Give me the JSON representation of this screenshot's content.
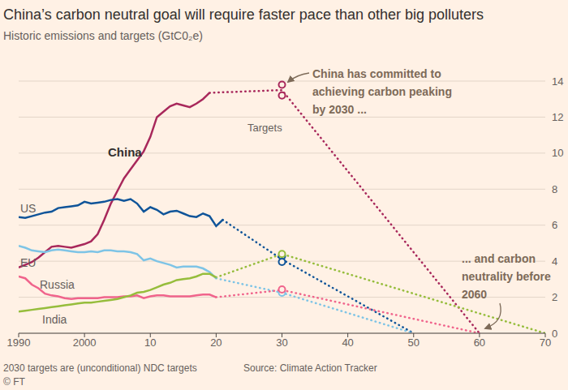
{
  "chart_data": {
    "type": "line",
    "title": "China’s carbon neutral goal will require faster pace than other big polluters",
    "subtitle": "Historic emissions and targets (GtC0₂e)",
    "note": "2030 targets are (unconditional) NDC targets",
    "source": "Source: Climate Action Tracker",
    "credit": "© FT",
    "x": [
      1990,
      1991,
      1992,
      1993,
      1994,
      1995,
      1996,
      1997,
      1998,
      1999,
      2000,
      2001,
      2002,
      2003,
      2004,
      2005,
      2006,
      2007,
      2008,
      2009,
      2010,
      2011,
      2012,
      2013,
      2014,
      2015,
      2016,
      2017,
      2018,
      2019,
      2020,
      2021
    ],
    "xlim": [
      1990,
      2070
    ],
    "xticks": [
      1990,
      2000,
      {
        "value": 2010,
        "label": "10"
      },
      {
        "value": 2020,
        "label": "20"
      },
      {
        "value": 2030,
        "label": "30"
      },
      {
        "value": 2040,
        "label": "40"
      },
      {
        "value": 2050,
        "label": "50"
      },
      {
        "value": 2060,
        "label": "60"
      },
      {
        "value": 2070,
        "label": "70"
      }
    ],
    "ylim": [
      0,
      14
    ],
    "yticks": [
      0,
      2,
      4,
      6,
      8,
      10,
      12,
      14
    ],
    "grid": true,
    "targets_label": "Targets",
    "series": [
      {
        "name": "China",
        "color": "#a8285b",
        "line_style": "solid",
        "values": [
          3.65,
          3.8,
          3.95,
          4.2,
          4.5,
          4.8,
          4.85,
          4.8,
          4.75,
          4.85,
          4.95,
          5.1,
          5.5,
          6.3,
          7.2,
          7.9,
          8.6,
          9.1,
          9.6,
          10.1,
          10.9,
          12.0,
          12.3,
          12.6,
          12.75,
          12.65,
          12.55,
          12.75,
          13.0,
          13.35,
          null,
          null
        ],
        "projection": {
          "x": [
            2019,
            2030,
            2060
          ],
          "values": [
            13.35,
            13.5,
            0
          ],
          "line_style": "dotted"
        },
        "targets": {
          "x": [
            2030,
            2030
          ],
          "values": [
            13.8,
            13.2
          ],
          "marker": "circle"
        }
      },
      {
        "name": "US",
        "color": "#0f5499",
        "line_style": "solid",
        "values": [
          6.45,
          6.4,
          6.5,
          6.6,
          6.7,
          6.75,
          6.95,
          7.0,
          7.05,
          7.1,
          7.3,
          7.2,
          7.25,
          7.3,
          7.4,
          7.45,
          7.35,
          7.45,
          7.2,
          6.75,
          7.0,
          6.85,
          6.6,
          6.75,
          6.8,
          6.65,
          6.5,
          6.45,
          6.65,
          6.5,
          5.95,
          6.3
        ],
        "projection": {
          "x": [
            2021,
            2030,
            2050
          ],
          "values": [
            6.3,
            4.1,
            0
          ],
          "line_style": "dotted"
        },
        "targets": {
          "x": [
            2030,
            2030
          ],
          "values": [
            4.28,
            3.96
          ],
          "marker": "circle"
        }
      },
      {
        "name": "EU",
        "color": "#7ec4e6",
        "line_style": "solid",
        "values": [
          4.85,
          4.75,
          4.6,
          4.55,
          4.5,
          4.6,
          4.65,
          4.6,
          4.55,
          4.5,
          4.5,
          4.55,
          4.5,
          4.6,
          4.6,
          4.55,
          4.55,
          4.5,
          4.4,
          4.05,
          4.15,
          4.0,
          3.9,
          3.8,
          3.65,
          3.7,
          3.7,
          3.7,
          3.6,
          3.4,
          3.05,
          null
        ],
        "projection": {
          "x": [
            2020,
            2030,
            2050
          ],
          "values": [
            3.05,
            2.25,
            0
          ],
          "line_style": "dotted"
        },
        "targets": {
          "x": [
            2030
          ],
          "values": [
            2.25
          ],
          "marker": "circle"
        }
      },
      {
        "name": "Russia",
        "color": "#f0648c",
        "line_style": "solid",
        "values": [
          3.15,
          3.05,
          2.7,
          2.5,
          2.2,
          2.1,
          2.05,
          1.95,
          1.9,
          1.95,
          1.95,
          1.95,
          1.95,
          2.0,
          2.0,
          2.0,
          2.05,
          2.05,
          2.1,
          1.95,
          2.05,
          2.1,
          2.1,
          2.05,
          2.05,
          2.05,
          2.05,
          2.1,
          2.15,
          2.15,
          2.0,
          null
        ],
        "projection": {
          "x": [
            2020,
            2030,
            2060
          ],
          "values": [
            2.0,
            2.4,
            0
          ],
          "line_style": "dotted"
        },
        "targets": {
          "x": [
            2030
          ],
          "values": [
            2.43
          ],
          "marker": "circle"
        }
      },
      {
        "name": "India",
        "color": "#96bd3c",
        "line_style": "solid",
        "values": [
          1.2,
          1.25,
          1.3,
          1.35,
          1.4,
          1.45,
          1.5,
          1.55,
          1.6,
          1.65,
          1.7,
          1.7,
          1.75,
          1.8,
          1.85,
          1.9,
          2.0,
          2.1,
          2.25,
          2.3,
          2.4,
          2.55,
          2.7,
          2.8,
          2.95,
          3.0,
          3.05,
          3.15,
          3.3,
          3.3,
          3.1,
          null
        ],
        "projection": {
          "x": [
            2020,
            2030,
            2070
          ],
          "values": [
            3.1,
            4.4,
            0
          ],
          "line_style": "dotted"
        },
        "targets": {
          "x": [
            2030
          ],
          "values": [
            4.4
          ],
          "marker": "circle"
        }
      }
    ],
    "annotations": [
      {
        "text": [
          "China has committed to",
          "achieving carbon peaking",
          "by 2030 ..."
        ]
      },
      {
        "text": [
          "... and carbon",
          "neutrality before",
          "2060"
        ]
      }
    ]
  }
}
